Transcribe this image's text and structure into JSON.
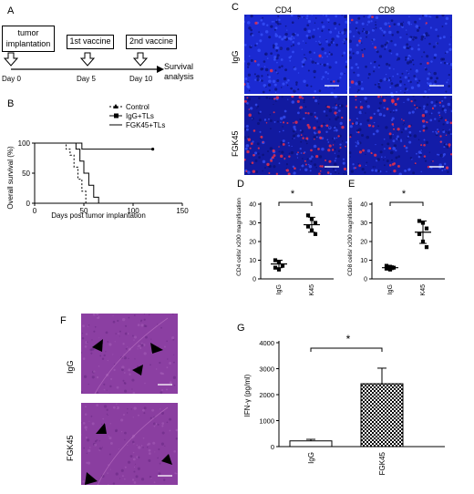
{
  "panelA": {
    "label": "A",
    "boxes": [
      "tumor implantation",
      "1st vaccine",
      "2nd vaccine"
    ],
    "days": [
      "Day 0",
      "Day 5",
      "Day 10"
    ],
    "end_label": "Survival analysis"
  },
  "panelB": {
    "label": "B",
    "chart_data": {
      "type": "line",
      "ylabel": "Overall survival (%)",
      "xlabel": "Days post tumor implantation",
      "xlim": [
        0,
        150
      ],
      "ylim": [
        0,
        100
      ],
      "xticks": [
        0,
        50,
        100,
        150
      ],
      "yticks": [
        0,
        50,
        100
      ],
      "legend_position": "top-right",
      "series": [
        {
          "name": "Control",
          "steps": [
            [
              0,
              100
            ],
            [
              32,
              100
            ],
            [
              32,
              90
            ],
            [
              36,
              90
            ],
            [
              36,
              80
            ],
            [
              40,
              80
            ],
            [
              40,
              60
            ],
            [
              44,
              60
            ],
            [
              44,
              40
            ],
            [
              48,
              40
            ],
            [
              48,
              20
            ],
            [
              52,
              20
            ],
            [
              52,
              0
            ]
          ]
        },
        {
          "name": "IgG+TLs",
          "steps": [
            [
              0,
              100
            ],
            [
              42,
              100
            ],
            [
              42,
              90
            ],
            [
              46,
              90
            ],
            [
              46,
              70
            ],
            [
              50,
              70
            ],
            [
              50,
              50
            ],
            [
              55,
              50
            ],
            [
              55,
              30
            ],
            [
              60,
              30
            ],
            [
              60,
              10
            ],
            [
              65,
              10
            ],
            [
              65,
              0
            ]
          ]
        },
        {
          "name": "FGK45+TLs",
          "steps": [
            [
              0,
              100
            ],
            [
              48,
              100
            ],
            [
              48,
              90
            ],
            [
              120,
              90
            ]
          ]
        }
      ]
    }
  },
  "panelC": {
    "label": "C",
    "col_labels": [
      "CD4",
      "CD8"
    ],
    "row_labels": [
      "IgG",
      "FGK45"
    ]
  },
  "panelD": {
    "label": "D",
    "sig": "*",
    "chart_data": {
      "type": "scatter",
      "ylabel": "CD4 cells/ x200 magnification",
      "categories": [
        "IgG",
        "FGK45"
      ],
      "ylim": [
        0,
        40
      ],
      "yticks": [
        0,
        10,
        20,
        30,
        40
      ],
      "points": {
        "IgG": [
          10,
          9,
          7,
          6,
          5
        ],
        "FGK45": [
          34,
          32,
          30,
          28,
          26,
          24
        ]
      },
      "mean": [
        8,
        29
      ],
      "sd": [
        2,
        4
      ]
    }
  },
  "panelE": {
    "label": "E",
    "sig": "*",
    "chart_data": {
      "type": "scatter",
      "ylabel": "CD8 cells/ x200 magnification",
      "categories": [
        "IgG",
        "FGK45"
      ],
      "ylim": [
        0,
        40
      ],
      "yticks": [
        0,
        10,
        20,
        30,
        40
      ],
      "points": {
        "IgG": [
          7,
          6.5,
          6,
          5.5,
          5
        ],
        "FGK45": [
          31,
          30,
          27,
          24,
          20,
          17
        ]
      },
      "mean": [
        6,
        25
      ],
      "sd": [
        1,
        6
      ]
    }
  },
  "panelF": {
    "label": "F",
    "row_labels": [
      "IgG",
      "FGK45"
    ]
  },
  "panelG": {
    "label": "G",
    "sig": "*",
    "chart_data": {
      "type": "bar",
      "ylabel": "IFN-γ (pg/ml)",
      "categories": [
        "IgG",
        "FGK45"
      ],
      "values": [
        220,
        2420
      ],
      "errors": [
        60,
        600
      ],
      "ylim": [
        0,
        4000
      ],
      "yticks": [
        0,
        1000,
        2000,
        3000,
        4000
      ]
    }
  },
  "colors": {
    "blue": "#1b2bd0",
    "red": "#e8304a",
    "purple": "#8a3fa0"
  }
}
